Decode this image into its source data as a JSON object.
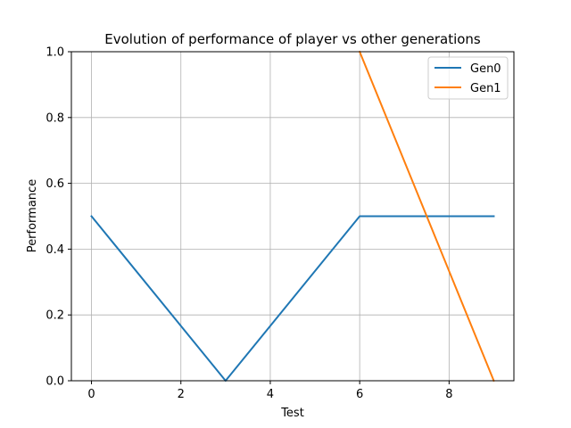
{
  "chart_data": {
    "type": "line",
    "title": "Evolution of performance of player vs other generations",
    "xlabel": "Test",
    "ylabel": "Performance",
    "xlim": [
      -0.45,
      9.45
    ],
    "ylim": [
      0.0,
      1.0
    ],
    "xticks": [
      0,
      2,
      4,
      6,
      8
    ],
    "yticks": [
      0.0,
      0.2,
      0.4,
      0.6,
      0.8,
      1.0
    ],
    "xtick_labels": [
      "0",
      "2",
      "4",
      "6",
      "8"
    ],
    "ytick_labels": [
      "0.0",
      "0.2",
      "0.4",
      "0.6",
      "0.8",
      "1.0"
    ],
    "grid": true,
    "legend_position": "upper-right",
    "series": [
      {
        "name": "Gen0",
        "color": "#1f77b4",
        "x": [
          0,
          3,
          6,
          9
        ],
        "y": [
          0.5,
          0.0,
          0.5,
          0.5
        ]
      },
      {
        "name": "Gen1",
        "color": "#ff7f0e",
        "x": [
          6,
          9
        ],
        "y": [
          1.0,
          0.0
        ]
      }
    ]
  }
}
